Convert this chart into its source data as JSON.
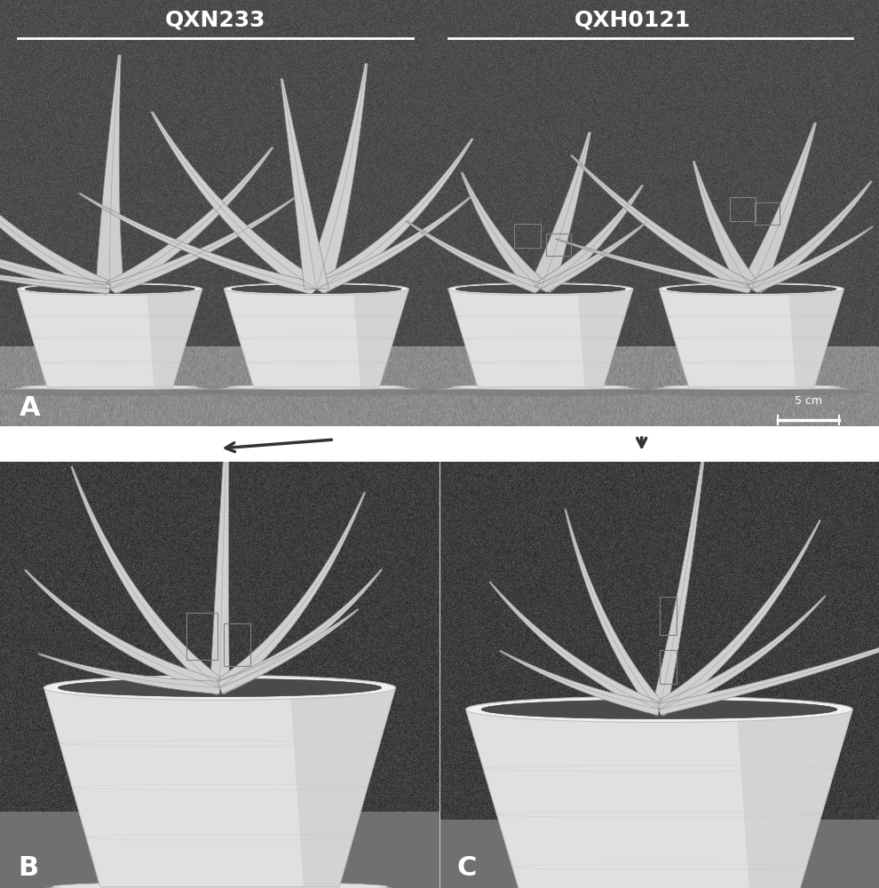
{
  "panel_a_label": "A",
  "panel_b_label": "B",
  "panel_c_label": "C",
  "label_qxn233": "QXN233",
  "label_qxh0121": "QXH0121",
  "scale_bar_text": "5 cm",
  "white_bg": "#ffffff",
  "dark_bg": "#1a1a1a",
  "medium_bg": "#3a3535",
  "text_white": "#ffffff",
  "text_black": "#111111",
  "pot_white": "#f0f0f0",
  "pot_light": "#e0e0e0",
  "pot_mid": "#c0c0c0",
  "pot_dark": "#909090",
  "leaf_light": "#d8d8d8",
  "leaf_mid": "#b0b0b0",
  "leaf_dark": "#888888",
  "soil_color": "#4a4a4a",
  "ground_color": "#a0a0a0",
  "arrow_color": "#333333",
  "figure_width": 9.9,
  "figure_height": 10.0,
  "dpi": 100
}
